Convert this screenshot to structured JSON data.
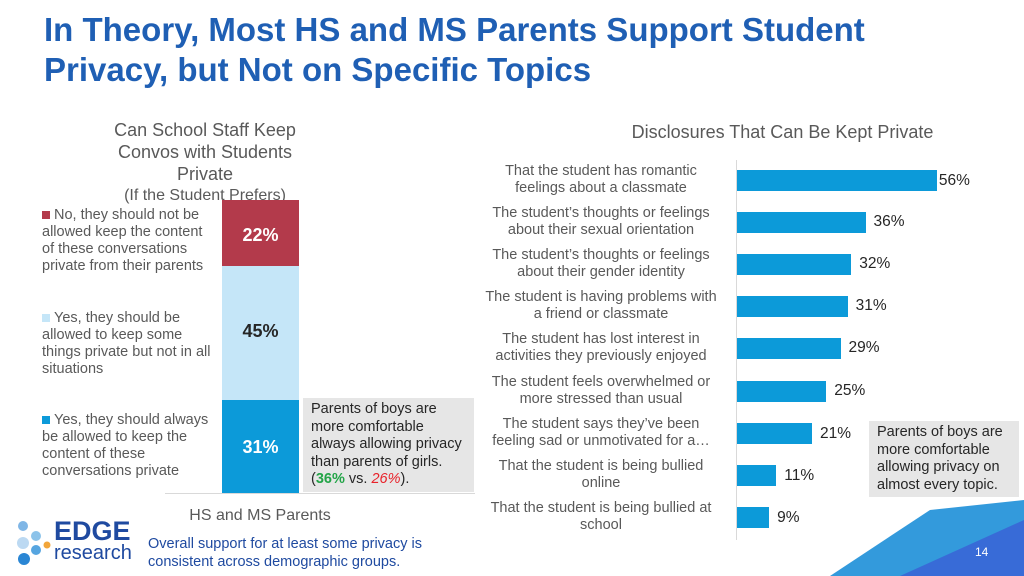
{
  "title": "In Theory, Most HS and MS Parents Support Student Privacy, but Not on Specific Topics",
  "colors": {
    "title": "#1f5fb4",
    "bar": "#0c9ad9",
    "no": "#b33a4b",
    "some": "#c5e6f8",
    "always": "#0c9ad9",
    "green": "#22a447",
    "red": "#e8232b"
  },
  "chart_data": [
    {
      "type": "bar",
      "stacked": true,
      "title": "Can School Staff Keep Convos with Students Private",
      "subtitle": "(If the Student Prefers)",
      "xlabel": "HS and MS Parents",
      "categories": [
        "HS and MS Parents"
      ],
      "series": [
        {
          "name": "Yes, they should always be allowed to keep the content of these conversations private",
          "values": [
            31
          ],
          "label": "31%"
        },
        {
          "name": "Yes, they should be allowed to keep some things private but not in all situations",
          "values": [
            45
          ],
          "label": "45%"
        },
        {
          "name": "No, they should not be allowed keep the content of these conversations private from their parents",
          "values": [
            22
          ],
          "label": "22%"
        }
      ],
      "legend": "left"
    },
    {
      "type": "bar",
      "orientation": "horizontal",
      "title": "Disclosures That Can Be Kept Private",
      "categories": [
        "That the student has romantic feelings about a classmate",
        "The student’s thoughts or feelings about their sexual orientation",
        "The student’s thoughts or feelings about their gender identity",
        "The student is having problems with a friend or classmate",
        "The student has lost interest in activities they previously enjoyed",
        "The student feels overwhelmed or more stressed than usual",
        "The student says they’ve been feeling sad or unmotivated for a…",
        "That the student is being bullied online",
        "That the student is being bullied at school"
      ],
      "values": [
        56,
        36,
        32,
        31,
        29,
        25,
        21,
        11,
        9
      ],
      "labels": [
        "56%",
        "36%",
        "32%",
        "31%",
        "29%",
        "25%",
        "21%",
        "11%",
        "9%"
      ]
    }
  ],
  "notes": {
    "boys_a": "Parents of boys are more comfortable always allowing privacy than parents of girls.",
    "open": "(",
    "boys_pct": "36%",
    "vs": " vs. ",
    "girls_pct": "26%",
    "close": ").",
    "boys_b": "Parents of boys are more comfortable allowing privacy on almost every topic."
  },
  "footer": {
    "summary": "Overall support for at least some privacy is consistent across demographic groups.",
    "page": "14",
    "logo_top": "EDGE",
    "logo_bottom": "research"
  }
}
